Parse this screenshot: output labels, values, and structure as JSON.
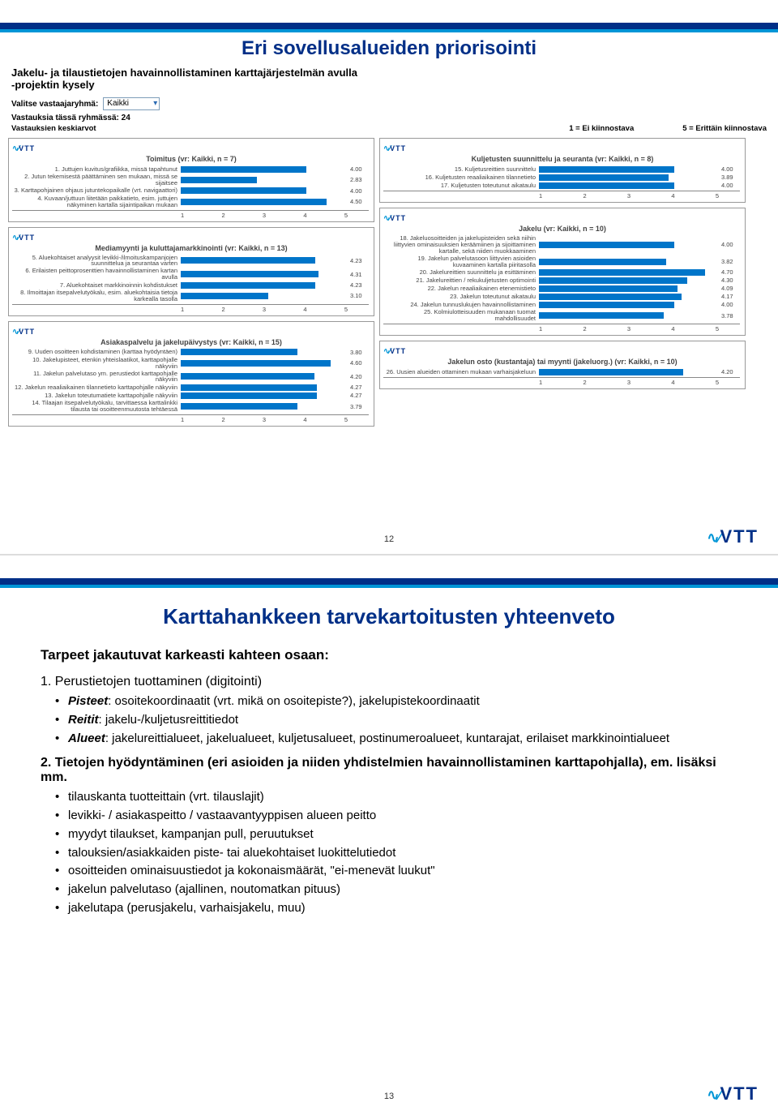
{
  "slide1": {
    "title": "Eri sovellusalueiden priorisointi",
    "subtitle1": "Jakelu- ja tilaustietojen havainnollistaminen karttajärjestelmän avulla",
    "subtitle2": "-projektin kysely",
    "selector_label": "Valitse vastaajaryhmä:",
    "selector_value": "Kaikki",
    "count_label": "Vastauksia tässä ryhmässä: 24",
    "avg_label": "Vastauksien keskiarvot",
    "scale_left": "1 = Ei kiinnostava",
    "scale_right": "5 = Erittäin kiinnostava",
    "page": "12",
    "axis_ticks": [
      "1",
      "2",
      "3",
      "4",
      "5"
    ],
    "panels": [
      {
        "title": "Toimitus (vr: Kaikki, n = 7)",
        "side": "left",
        "label_w": 208,
        "items": [
          {
            "label": "1. Juttujen kuvitus/grafiikka, missä tapahtunut",
            "val": 4.0
          },
          {
            "label": "2. Jutun tekemisestä päättäminen sen mukaan, missä se sijaitsee",
            "val": 2.83
          },
          {
            "label": "3. Karttapohjainen ohjaus jutuntekopaikalle (vrt. navigaattori)",
            "val": 4.0
          },
          {
            "label": "4. Kuvaan/juttuun liitetään paikkatieto, esim. juttujen näkyminen kartalla sijaintipaikan mukaan",
            "val": 4.5
          }
        ]
      },
      {
        "title": "Kuljetusten suunnittelu ja seuranta (vr: Kaikki, n = 8)",
        "side": "right",
        "label_w": 192,
        "items": [
          {
            "label": "15. Kuljetusreittien suunnittelu",
            "val": 4.0
          },
          {
            "label": "16. Kuljetusten reaaliaikainen tilannetieto",
            "val": 3.89
          },
          {
            "label": "17. Kuljetusten toteutunut aikataulu",
            "val": 4.0
          }
        ]
      },
      {
        "title": "Mediamyynti ja kuluttajamarkkinointi (vr: Kaikki, n = 13)",
        "side": "left",
        "label_w": 208,
        "items": [
          {
            "label": "5. Aluekohtaiset analyysit levikki-/ilmoituskampanjojen suunnittelua ja seurantaa varten",
            "val": 4.23
          },
          {
            "label": "6. Erilaisten peittoprosenttien havainnollistaminen kartan avulla",
            "val": 4.31
          },
          {
            "label": "7. Aluekohtaiset markkinoinnin kohdistukset",
            "val": 4.23
          },
          {
            "label": "8. Ilmoittajan itsepalvelutyökalu, esim. aluekohtaisia tietoja karkealla tasolla",
            "val": 3.1
          }
        ]
      },
      {
        "title": "Jakelu (vr: Kaikki, n = 10)",
        "side": "right",
        "label_w": 192,
        "items": [
          {
            "label": "18. Jakeluosoitteiden ja jakelupisteiden sekä niihin liittyvien ominaisuuksien keräämiinen ja sijoittaminen kartalle, sekä niiden muokkaaminen",
            "val": 4.0
          },
          {
            "label": "19. Jakelun palvelutasoon liittyvien asioiden kuvaaminen kartalla piiritasolla",
            "val": 3.82
          },
          {
            "label": "20. Jakelureittien suunnittelu ja esittäminen",
            "val": 4.7
          },
          {
            "label": "21. Jakelureittien / rekukuljetusten optimointi",
            "val": 4.3
          },
          {
            "label": "22. Jakelun reaaliaikainen etenemistieto",
            "val": 4.09
          },
          {
            "label": "23. Jakelun toteutunut aikataulu",
            "val": 4.17
          },
          {
            "label": "24. Jakelun tunnuslukujen havainnollistaminen",
            "val": 4.0
          },
          {
            "label": "25. Kolmiulotteisuuden mukanaan tuomat mahdollisuudet",
            "val": 3.78
          }
        ]
      },
      {
        "title": "Asiakaspalvelu ja jakelupäivystys (vr: Kaikki, n = 15)",
        "side": "left",
        "label_w": 208,
        "items": [
          {
            "label": "9. Uuden osoitteen kohdistaminen (karttaa hyödyntäen)",
            "val": 3.8
          },
          {
            "label": "10. Jakelupisteet, etenkin yhteislaatikot, karttapohjalle näkyviin",
            "val": 4.6
          },
          {
            "label": "11. Jakelun palvelutaso ym. perustiedot karttapohjalle näkyviin",
            "val": 4.2
          },
          {
            "label": "12. Jakelun reaaliaikainen tilannetieto karttapohjalle näkyviin",
            "val": 4.27
          },
          {
            "label": "13. Jakelun toteutumatiete karttapohjalle näkyviin",
            "val": 4.27
          },
          {
            "label": "14. Tilaajan itsepalvelutyökalu, tarvittaessa karttalinkki tilausta tai osoitteenmuutosta tehtäessä",
            "val": 3.79
          }
        ]
      },
      {
        "title": "Jakelun osto (kustantaja) tai myynti (jakeluorg.) (vr: Kaikki, n = 10)",
        "side": "right",
        "label_w": 192,
        "items": [
          {
            "label": "26. Uusien alueiden ottaminen mukaan varhaisjakeluun",
            "val": 4.2
          }
        ]
      }
    ]
  },
  "slide2": {
    "title": "Karttahankkeen tarvekartoitusten yhteenveto",
    "heading": "Tarpeet jakautuvat karkeasti kahteen osaan:",
    "sec1": {
      "num": "1. Perustietojen tuottaminen (digitointi)",
      "items": [
        {
          "pre": "Pisteet",
          "txt": ": osoitekoordinaatit (vrt. mikä on osoitepiste?), jakelupistekoordinaatit"
        },
        {
          "pre": "Reitit",
          "txt": ": jakelu-/kuljetusreittitiedot"
        },
        {
          "pre": "Alueet",
          "txt": ": jakelureittialueet, jakelualueet, kuljetusalueet, postinumeroalueet, kuntarajat, erilaiset markkinointialueet"
        }
      ]
    },
    "sec2": {
      "num": "2. Tietojen hyödyntäminen (eri asioiden ja niiden yhdistelmien havainnollistaminen karttapohjalla), em. lisäksi mm.",
      "items": [
        "tilauskanta tuotteittain (vrt. tilauslajit)",
        "levikki- / asiakaspeitto / vastaavantyyppisen alueen peitto",
        "myydyt tilaukset, kampanjan pull, peruutukset",
        "talouksien/asiakkaiden piste- tai aluekohtaiset luokittelutiedot",
        "osoitteiden ominaisuustiedot ja kokonaismäärät, \"ei-menevät luukut\"",
        "jakelun palvelutaso (ajallinen, noutomatkan pituus)",
        "jakelutapa (perusjakelu, varhaisjakelu, muu)"
      ]
    },
    "page": "13"
  },
  "colors": {
    "brand": "#002f87",
    "accent": "#0095d6",
    "bar": "#0075c9"
  }
}
